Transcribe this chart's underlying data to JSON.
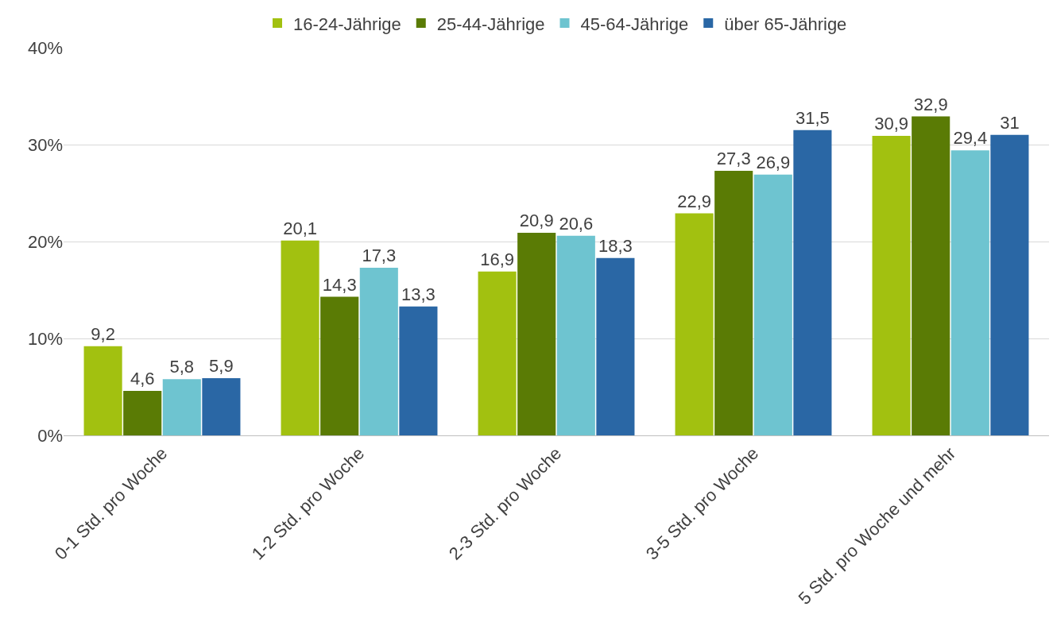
{
  "chart_data": {
    "type": "bar",
    "categories": [
      "0-1 Std. pro Woche",
      "1-2 Std. pro Woche",
      "2-3 Std. pro Woche",
      "3-5 Std. pro Woche",
      "5 Std. pro Woche und mehr"
    ],
    "series": [
      {
        "name": "16-24-Jährige",
        "color": "#a2c110",
        "values": [
          9.2,
          20.1,
          16.9,
          22.9,
          30.9
        ],
        "value_labels": [
          "9,2",
          "20,1",
          "16,9",
          "22,9",
          "30,9"
        ]
      },
      {
        "name": "25-44-Jährige",
        "color": "#5a7b05",
        "values": [
          4.6,
          14.3,
          20.9,
          27.3,
          32.9
        ],
        "value_labels": [
          "4,6",
          "14,3",
          "20,9",
          "27,3",
          "32,9"
        ]
      },
      {
        "name": "45-64-Jährige",
        "color": "#6ec4d0",
        "values": [
          5.8,
          17.3,
          20.6,
          26.9,
          29.4
        ],
        "value_labels": [
          "5,8",
          "17,3",
          "20,6",
          "26,9",
          "29,4"
        ]
      },
      {
        "name": "über 65-Jährige",
        "color": "#2a67a5",
        "values": [
          5.9,
          13.3,
          18.3,
          31.5,
          31
        ],
        "value_labels": [
          "5,9",
          "13,3",
          "18,3",
          "31,5",
          "31"
        ]
      }
    ],
    "ylim": [
      0,
      40
    ],
    "yticks": [
      {
        "value": 0,
        "label": "0%"
      },
      {
        "value": 10,
        "label": "10%"
      },
      {
        "value": 20,
        "label": "20%"
      },
      {
        "value": 30,
        "label": "30%"
      },
      {
        "value": 40,
        "label": "40%"
      }
    ],
    "grid": "y",
    "legend": "top"
  }
}
